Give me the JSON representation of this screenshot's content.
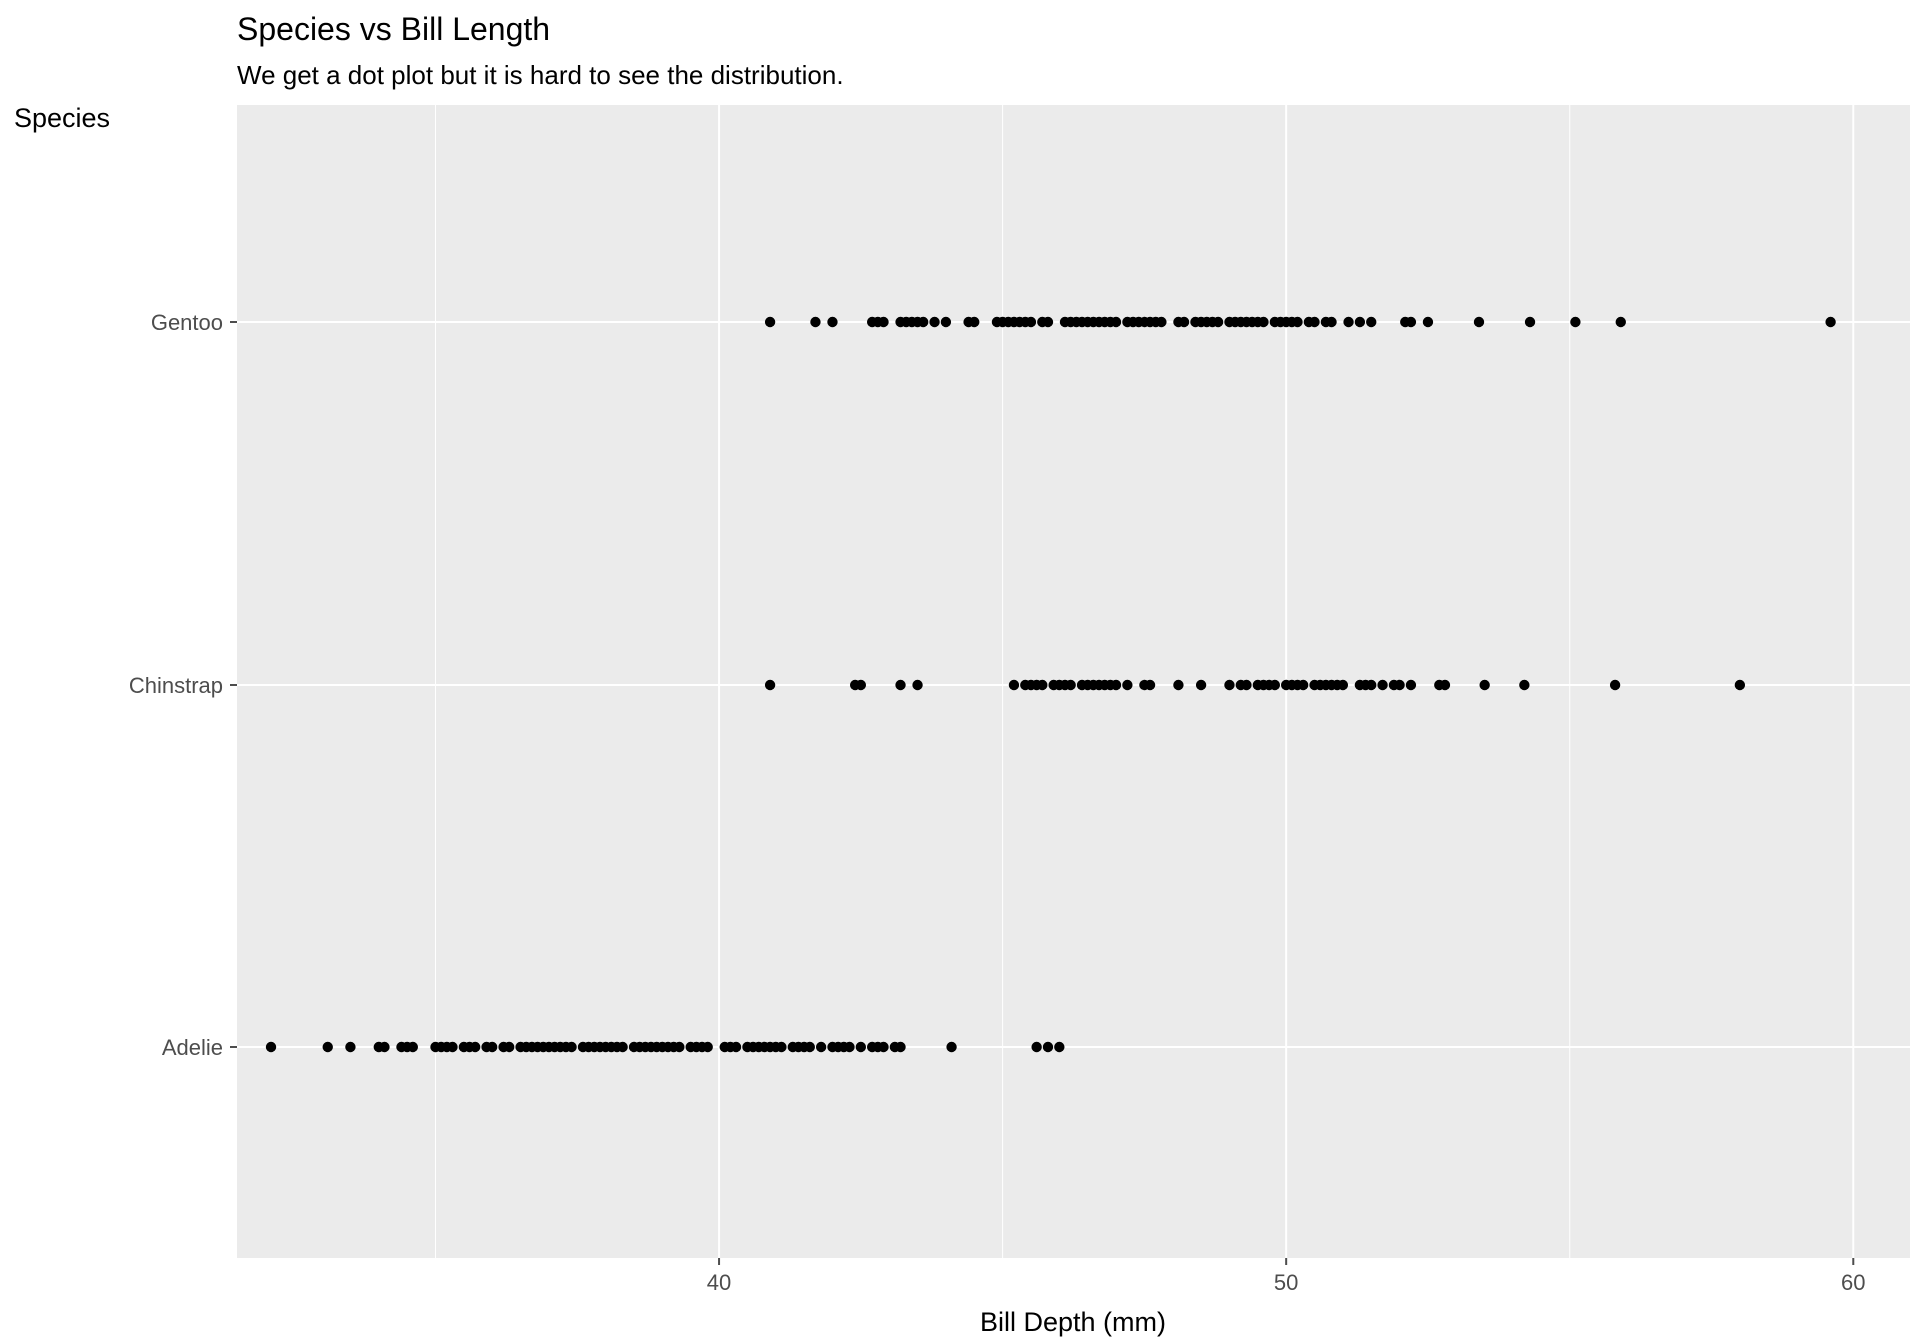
{
  "chart_data": {
    "type": "scatter",
    "title": "Species vs Bill Length",
    "subtitle": "We get a dot plot but it is hard to see the distribution.",
    "xlabel": "Bill Depth (mm)",
    "ylabel": "Species",
    "xlim": [
      31.5,
      61.0
    ],
    "x_ticks": [
      "40",
      "50",
      "60"
    ],
    "categories": [
      "Adelie",
      "Chinstrap",
      "Gentoo"
    ],
    "grid": true,
    "legend": "none",
    "colors": {
      "panel": "#ebebeb",
      "grid": "#ffffff",
      "point": "#000000",
      "tick": "#4d4d4d"
    },
    "series": [
      {
        "category": "Adelie",
        "x": [
          32.1,
          33.1,
          33.5,
          34.0,
          34.1,
          34.4,
          34.5,
          34.6,
          35.0,
          35.1,
          35.2,
          35.3,
          35.5,
          35.6,
          35.7,
          35.9,
          36.0,
          36.2,
          36.3,
          36.5,
          36.6,
          36.7,
          36.8,
          36.9,
          37.0,
          37.1,
          37.2,
          37.3,
          37.4,
          37.6,
          37.7,
          37.8,
          37.9,
          38.0,
          38.1,
          38.2,
          38.3,
          38.5,
          38.6,
          38.7,
          38.8,
          38.9,
          39.0,
          39.1,
          39.2,
          39.3,
          39.5,
          39.6,
          39.7,
          39.8,
          40.1,
          40.2,
          40.3,
          40.5,
          40.6,
          40.7,
          40.8,
          40.9,
          41.0,
          41.1,
          41.3,
          41.4,
          41.5,
          41.6,
          41.8,
          42.0,
          42.1,
          42.2,
          42.3,
          42.5,
          42.7,
          42.8,
          42.9,
          43.1,
          43.2,
          44.1,
          45.6,
          45.8,
          46.0
        ]
      },
      {
        "category": "Chinstrap",
        "x": [
          40.9,
          42.4,
          42.5,
          43.2,
          43.5,
          45.2,
          45.4,
          45.5,
          45.6,
          45.7,
          45.9,
          46.0,
          46.1,
          46.2,
          46.4,
          46.5,
          46.6,
          46.7,
          46.8,
          46.9,
          47.0,
          47.2,
          47.5,
          47.6,
          48.1,
          48.5,
          49.0,
          49.2,
          49.3,
          49.5,
          49.6,
          49.7,
          49.8,
          50.0,
          50.1,
          50.2,
          50.3,
          50.5,
          50.6,
          50.7,
          50.8,
          50.9,
          51.0,
          51.3,
          51.4,
          51.5,
          51.7,
          51.9,
          52.0,
          52.2,
          52.7,
          52.8,
          53.5,
          54.2,
          55.8,
          58.0
        ]
      },
      {
        "category": "Gentoo",
        "x": [
          40.9,
          41.7,
          42.0,
          42.7,
          42.8,
          42.9,
          43.2,
          43.3,
          43.4,
          43.5,
          43.6,
          43.8,
          44.0,
          44.4,
          44.5,
          44.9,
          45.0,
          45.1,
          45.2,
          45.3,
          45.4,
          45.5,
          45.7,
          45.8,
          46.1,
          46.2,
          46.3,
          46.4,
          46.5,
          46.6,
          46.7,
          46.8,
          46.9,
          47.0,
          47.2,
          47.3,
          47.4,
          47.5,
          47.6,
          47.7,
          47.8,
          48.1,
          48.2,
          48.4,
          48.5,
          48.6,
          48.7,
          48.8,
          49.0,
          49.1,
          49.2,
          49.3,
          49.4,
          49.5,
          49.6,
          49.8,
          49.9,
          50.0,
          50.1,
          50.2,
          50.4,
          50.5,
          50.7,
          50.8,
          51.1,
          51.3,
          51.5,
          52.1,
          52.2,
          52.5,
          53.4,
          54.3,
          55.1,
          55.9,
          59.6
        ]
      }
    ]
  }
}
